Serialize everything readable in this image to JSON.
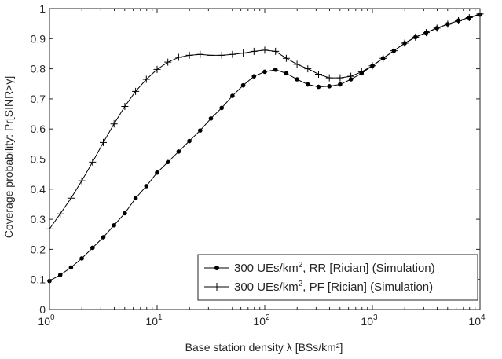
{
  "chart_data": {
    "type": "line",
    "xlabel": "Base station density λ [BSs/km²]",
    "ylabel": "Coverage probability: Pr[SINR>γ]",
    "xscale": "log",
    "xlim": [
      1,
      10000
    ],
    "ylim": [
      0,
      1
    ],
    "grid": false,
    "legend_position": "bottom-right",
    "x_ticks": [
      {
        "value": 1,
        "base": "10",
        "exp": "0"
      },
      {
        "value": 10,
        "base": "10",
        "exp": "1"
      },
      {
        "value": 100,
        "base": "10",
        "exp": "2"
      },
      {
        "value": 1000,
        "base": "10",
        "exp": "3"
      },
      {
        "value": 10000,
        "base": "10",
        "exp": "4"
      }
    ],
    "y_ticks": [
      {
        "value": 0,
        "label": "0"
      },
      {
        "value": 0.1,
        "label": "0.1"
      },
      {
        "value": 0.2,
        "label": "0.2"
      },
      {
        "value": 0.3,
        "label": "0.3"
      },
      {
        "value": 0.4,
        "label": "0.4"
      },
      {
        "value": 0.5,
        "label": "0.5"
      },
      {
        "value": 0.6,
        "label": "0.6"
      },
      {
        "value": 0.7,
        "label": "0.7"
      },
      {
        "value": 0.8,
        "label": "0.8"
      },
      {
        "value": 0.9,
        "label": "0.9"
      },
      {
        "value": 1,
        "label": "1"
      }
    ],
    "series": [
      {
        "name": "300 UEs/km², RR [Rician] (Simulation)",
        "legend_parts": [
          "300 UEs/km",
          "2",
          ", RR [Rician] (Simulation)"
        ],
        "marker": "dot",
        "color": "#000000",
        "x": [
          1,
          1.259,
          1.585,
          1.995,
          2.512,
          3.162,
          3.981,
          5.012,
          6.31,
          7.943,
          10,
          12.59,
          15.85,
          19.95,
          25.12,
          31.62,
          39.81,
          50.12,
          63.1,
          79.43,
          100,
          125.9,
          158.5,
          199.5,
          251.2,
          316.2,
          398.1,
          501.2,
          631,
          794.3,
          1000,
          1259,
          1585,
          1995,
          2512,
          3162,
          3981,
          5012,
          6310,
          7943,
          10000
        ],
        "y": [
          0.095,
          0.115,
          0.14,
          0.17,
          0.205,
          0.24,
          0.28,
          0.32,
          0.37,
          0.41,
          0.455,
          0.49,
          0.525,
          0.56,
          0.595,
          0.635,
          0.67,
          0.71,
          0.745,
          0.775,
          0.79,
          0.797,
          0.785,
          0.765,
          0.748,
          0.74,
          0.742,
          0.748,
          0.765,
          0.785,
          0.81,
          0.835,
          0.86,
          0.885,
          0.905,
          0.92,
          0.935,
          0.948,
          0.96,
          0.97,
          0.98
        ]
      },
      {
        "name": "300 UEs/km², PF [Rician] (Simulation)",
        "legend_parts": [
          "300 UEs/km",
          "2",
          ", PF [Rician] (Simulation)"
        ],
        "marker": "plus",
        "color": "#000000",
        "x": [
          1,
          1.259,
          1.585,
          1.995,
          2.512,
          3.162,
          3.981,
          5.012,
          6.31,
          7.943,
          10,
          12.59,
          15.85,
          19.95,
          25.12,
          31.62,
          39.81,
          50.12,
          63.1,
          79.43,
          100,
          125.9,
          158.5,
          199.5,
          251.2,
          316.2,
          398.1,
          501.2,
          631,
          794.3,
          1000,
          1259,
          1585,
          1995,
          2512,
          3162,
          3981,
          5012,
          6310,
          7943,
          10000
        ],
        "y": [
          0.268,
          0.318,
          0.37,
          0.428,
          0.49,
          0.555,
          0.617,
          0.675,
          0.725,
          0.765,
          0.798,
          0.822,
          0.838,
          0.845,
          0.848,
          0.845,
          0.845,
          0.848,
          0.852,
          0.858,
          0.862,
          0.858,
          0.835,
          0.815,
          0.8,
          0.782,
          0.77,
          0.77,
          0.775,
          0.79,
          0.81,
          0.835,
          0.86,
          0.885,
          0.905,
          0.92,
          0.935,
          0.948,
          0.96,
          0.97,
          0.982
        ]
      }
    ]
  }
}
